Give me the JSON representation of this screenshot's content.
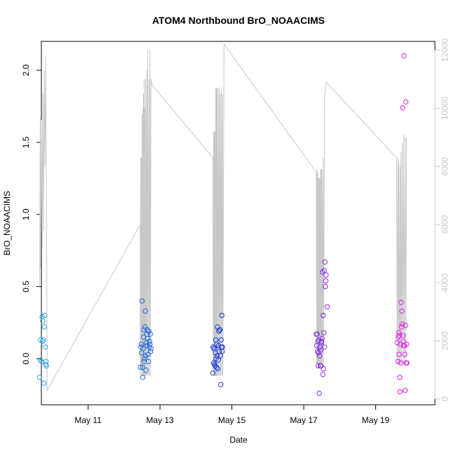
{
  "chart_data": {
    "type": "scatter",
    "title": "ATOM4 Northbound BrO_NOAACIMS",
    "xlabel": "Date",
    "ylabel": "BrO_NOAACIMS",
    "x_unit": "day of May 2018",
    "xlim": [
      9.7,
      20.65
    ],
    "ylim": [
      -0.32,
      2.2
    ],
    "y_ticks": [
      0.0,
      0.5,
      1.0,
      1.5,
      2.0
    ],
    "y_tick_labels": [
      "0.0",
      "0.5",
      "1.0",
      "1.5",
      "2.0"
    ],
    "x_ticks": [
      11,
      13,
      15,
      17,
      19
    ],
    "x_tick_labels": [
      "May 11",
      "May 13",
      "May 15",
      "May 17",
      "May 19"
    ],
    "y2lim": [
      -200,
      12300
    ],
    "y2_ticks": [
      0,
      2000,
      4000,
      6000,
      8000,
      10000,
      12000
    ],
    "y2_tick_labels": [
      "0",
      "2000",
      "4000",
      "6000",
      "8000",
      "10000",
      "12000"
    ],
    "y2_color": "#c8c8c8",
    "grid": false,
    "point_color_gradient": [
      "#29abe2",
      "#1e3cdc",
      "#e61ee6"
    ],
    "series": [
      {
        "kind": "points",
        "points": [
          [
            9.65,
            -0.13
          ],
          [
            9.67,
            -0.01
          ],
          [
            9.68,
            0.13
          ],
          [
            9.7,
            -0.02
          ],
          [
            9.72,
            0.29
          ],
          [
            9.73,
            0.12
          ],
          [
            9.74,
            0.26
          ],
          [
            9.76,
            0.13
          ],
          [
            9.77,
            -0.17
          ],
          [
            9.78,
            0.22
          ],
          [
            9.79,
            0.3
          ],
          [
            9.81,
            0.08
          ],
          [
            9.82,
            -0.04
          ],
          [
            9.83,
            -0.02
          ],
          [
            9.84,
            -0.05
          ],
          [
            12.45,
            -0.06
          ],
          [
            12.47,
            0.08
          ],
          [
            12.48,
            0.1
          ],
          [
            12.49,
            0.04
          ],
          [
            12.5,
            0.4
          ],
          [
            12.51,
            -0.06
          ],
          [
            12.52,
            -0.13
          ],
          [
            12.53,
            0.07
          ],
          [
            12.54,
            0.15
          ],
          [
            12.55,
            0.2
          ],
          [
            12.56,
            -0.02
          ],
          [
            12.57,
            0.0
          ],
          [
            12.58,
            0.22
          ],
          [
            12.59,
            0.33
          ],
          [
            12.6,
            0.02
          ],
          [
            12.61,
            -0.08
          ],
          [
            12.62,
            0.11
          ],
          [
            12.63,
            0.09
          ],
          [
            12.64,
            0.17
          ],
          [
            12.65,
            0.2
          ],
          [
            12.66,
            0.14
          ],
          [
            12.67,
            0.03
          ],
          [
            12.68,
            -0.02
          ],
          [
            12.69,
            0.19
          ],
          [
            12.7,
            0.08
          ],
          [
            12.71,
            0.12
          ],
          [
            12.72,
            0.1
          ],
          [
            12.73,
            0.17
          ],
          [
            12.74,
            0.05
          ],
          [
            12.75,
            0.07
          ],
          [
            14.47,
            -0.1
          ],
          [
            14.48,
            0.08
          ],
          [
            14.49,
            -0.03
          ],
          [
            14.5,
            0.07
          ],
          [
            14.51,
            0.07
          ],
          [
            14.52,
            -0.04
          ],
          [
            14.53,
            -0.05
          ],
          [
            14.54,
            0.04
          ],
          [
            14.55,
            0.13
          ],
          [
            14.56,
            0.0
          ],
          [
            14.57,
            -0.06
          ],
          [
            14.58,
            0.1
          ],
          [
            14.59,
            0.02
          ],
          [
            14.6,
            0.22
          ],
          [
            14.61,
            -0.07
          ],
          [
            14.62,
            -0.01
          ],
          [
            14.63,
            0.09
          ],
          [
            14.64,
            0.19
          ],
          [
            14.65,
            0.05
          ],
          [
            14.66,
            0.2
          ],
          [
            14.67,
            0.2
          ],
          [
            14.68,
            0.02
          ],
          [
            14.69,
            -0.18
          ],
          [
            14.7,
            0.13
          ],
          [
            14.71,
            0.08
          ],
          [
            14.72,
            0.3
          ],
          [
            14.73,
            0.05
          ],
          [
            14.74,
            0.08
          ],
          [
            17.35,
            0.17
          ],
          [
            17.36,
            0.09
          ],
          [
            17.37,
            0.17
          ],
          [
            17.38,
            0.05
          ],
          [
            17.39,
            0.12
          ],
          [
            17.4,
            -0.05
          ],
          [
            17.41,
            0.04
          ],
          [
            17.42,
            0.13
          ],
          [
            17.43,
            -0.24
          ],
          [
            17.44,
            0.02
          ],
          [
            17.45,
            0.08
          ],
          [
            17.46,
            -0.05
          ],
          [
            17.47,
            0.06
          ],
          [
            17.48,
            -0.05
          ],
          [
            17.49,
            0.11
          ],
          [
            17.5,
            0.12
          ],
          [
            17.51,
            0.14
          ],
          [
            17.52,
            0.6
          ],
          [
            17.53,
            -0.11
          ],
          [
            17.54,
            0.3
          ],
          [
            17.55,
            -0.07
          ],
          [
            17.56,
            0.18
          ],
          [
            17.57,
            0.61
          ],
          [
            17.58,
            0.08
          ],
          [
            17.59,
            0.67
          ],
          [
            17.6,
            0.5
          ],
          [
            17.61,
            0.54
          ],
          [
            17.62,
            0.58
          ],
          [
            17.65,
            0.36
          ],
          [
            19.6,
            0.11
          ],
          [
            19.62,
            -0.02
          ],
          [
            19.63,
            0.15
          ],
          [
            19.64,
            0.18
          ],
          [
            19.65,
            0.03
          ],
          [
            19.66,
            0.16
          ],
          [
            19.67,
            -0.13
          ],
          [
            19.68,
            -0.23
          ],
          [
            19.69,
            0.1
          ],
          [
            19.7,
            -0.03
          ],
          [
            19.71,
            0.39
          ],
          [
            19.72,
            0.22
          ],
          [
            19.73,
            0.33
          ],
          [
            19.74,
            0.24
          ],
          [
            19.75,
            1.74
          ],
          [
            19.76,
            0.16
          ],
          [
            19.77,
            0.12
          ],
          [
            19.78,
            0.09
          ],
          [
            19.79,
            2.1
          ],
          [
            19.8,
            0.09
          ],
          [
            19.81,
            0.03
          ],
          [
            19.82,
            -0.22
          ],
          [
            19.83,
            0.23
          ],
          [
            19.84,
            1.78
          ],
          [
            19.85,
            -0.03
          ],
          [
            19.86,
            0.1
          ],
          [
            19.87,
            -0.03
          ]
        ]
      },
      {
        "kind": "line",
        "axis": "right",
        "color": "#c8c8c8",
        "points": [
          [
            9.65,
            3800
          ],
          [
            9.67,
            9700
          ],
          [
            9.68,
            4500
          ],
          [
            9.7,
            9600
          ],
          [
            9.72,
            5200
          ],
          [
            9.74,
            10500
          ],
          [
            9.76,
            5800
          ],
          [
            9.78,
            11300
          ],
          [
            9.8,
            8000
          ],
          [
            9.82,
            11800
          ],
          [
            9.85,
            3500
          ],
          [
            9.86,
            300
          ],
          [
            12.45,
            6000
          ],
          [
            12.45,
            800
          ],
          [
            12.46,
            8300
          ],
          [
            12.47,
            1000
          ],
          [
            12.48,
            8300
          ],
          [
            12.49,
            800
          ],
          [
            12.5,
            9800
          ],
          [
            12.51,
            800
          ],
          [
            12.52,
            10000
          ],
          [
            12.53,
            800
          ],
          [
            12.54,
            10500
          ],
          [
            12.55,
            800
          ],
          [
            12.56,
            11000
          ],
          [
            12.57,
            800
          ],
          [
            12.58,
            10000
          ],
          [
            12.59,
            800
          ],
          [
            12.6,
            11000
          ],
          [
            12.61,
            800
          ],
          [
            12.63,
            11300
          ],
          [
            12.64,
            800
          ],
          [
            12.66,
            12000
          ],
          [
            12.67,
            800
          ],
          [
            12.69,
            11000
          ],
          [
            12.7,
            800
          ],
          [
            12.72,
            12000
          ],
          [
            12.73,
            800
          ],
          [
            12.75,
            11000
          ],
          [
            12.78,
            10800
          ],
          [
            14.47,
            8300
          ],
          [
            14.48,
            800
          ],
          [
            14.49,
            9200
          ],
          [
            14.5,
            800
          ],
          [
            14.51,
            9200
          ],
          [
            14.52,
            800
          ],
          [
            14.53,
            9200
          ],
          [
            14.54,
            800
          ],
          [
            14.55,
            10700
          ],
          [
            14.56,
            800
          ],
          [
            14.57,
            10700
          ],
          [
            14.58,
            800
          ],
          [
            14.59,
            10700
          ],
          [
            14.6,
            800
          ],
          [
            14.62,
            10700
          ],
          [
            14.63,
            800
          ],
          [
            14.65,
            10700
          ],
          [
            14.66,
            800
          ],
          [
            14.68,
            10500
          ],
          [
            14.69,
            800
          ],
          [
            14.71,
            10700
          ],
          [
            14.72,
            800
          ],
          [
            14.74,
            10500
          ],
          [
            14.75,
            800
          ],
          [
            14.78,
            12200
          ],
          [
            17.35,
            7800
          ],
          [
            17.36,
            1200
          ],
          [
            17.37,
            7900
          ],
          [
            17.38,
            1200
          ],
          [
            17.39,
            7800
          ],
          [
            17.4,
            1200
          ],
          [
            17.41,
            7600
          ],
          [
            17.42,
            1200
          ],
          [
            17.43,
            7600
          ],
          [
            17.44,
            1200
          ],
          [
            17.45,
            7600
          ],
          [
            17.46,
            1200
          ],
          [
            17.47,
            7900
          ],
          [
            17.48,
            1200
          ],
          [
            17.49,
            7900
          ],
          [
            17.5,
            1200
          ],
          [
            17.51,
            7900
          ],
          [
            17.52,
            1200
          ],
          [
            17.54,
            8300
          ],
          [
            17.55,
            1200
          ],
          [
            17.58,
            10500
          ],
          [
            17.6,
            10500
          ],
          [
            17.62,
            10900
          ],
          [
            19.58,
            8300
          ],
          [
            19.6,
            1200
          ],
          [
            19.62,
            8300
          ],
          [
            19.63,
            1200
          ],
          [
            19.64,
            8200
          ],
          [
            19.66,
            1200
          ],
          [
            19.68,
            8000
          ],
          [
            19.69,
            1200
          ],
          [
            19.7,
            8500
          ],
          [
            19.72,
            1200
          ],
          [
            19.74,
            8800
          ],
          [
            19.76,
            1200
          ],
          [
            19.78,
            9100
          ],
          [
            19.8,
            1200
          ],
          [
            19.82,
            9000
          ],
          [
            19.84,
            1200
          ],
          [
            19.86,
            9000
          ]
        ]
      }
    ]
  }
}
